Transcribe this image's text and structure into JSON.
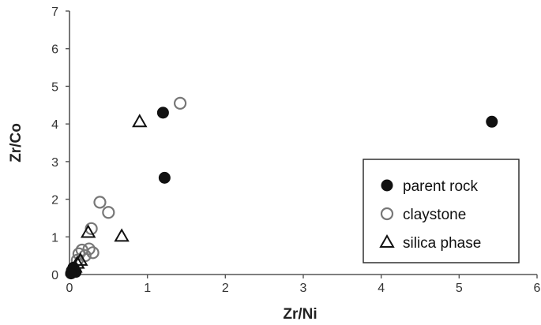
{
  "chart_data": {
    "type": "scatter",
    "xlabel": "Zr/Ni",
    "ylabel": "Zr/Co",
    "xlim": [
      0,
      6
    ],
    "ylim": [
      0,
      7
    ],
    "xticks": [
      "0",
      "1",
      "2",
      "3",
      "4",
      "5",
      "6"
    ],
    "yticks": [
      "0",
      "1",
      "2",
      "3",
      "4",
      "5",
      "6",
      "7"
    ],
    "grid": false,
    "legend_position": "bottom-right",
    "series": [
      {
        "name": "parent rock",
        "marker": "filled-circle",
        "color": "#111111",
        "points": [
          [
            1.2,
            4.3
          ],
          [
            1.22,
            2.57
          ],
          [
            5.42,
            4.06
          ],
          [
            0.03,
            0.1
          ],
          [
            0.05,
            0.18
          ],
          [
            0.08,
            0.07
          ],
          [
            0.02,
            0.03
          ]
        ]
      },
      {
        "name": "claystone",
        "marker": "open-circle",
        "color": "#777777",
        "points": [
          [
            1.42,
            4.55
          ],
          [
            0.39,
            1.92
          ],
          [
            0.5,
            1.65
          ],
          [
            0.28,
            1.22
          ],
          [
            0.12,
            0.55
          ],
          [
            0.16,
            0.65
          ],
          [
            0.2,
            0.5
          ],
          [
            0.25,
            0.68
          ],
          [
            0.3,
            0.58
          ],
          [
            0.1,
            0.38
          ]
        ]
      },
      {
        "name": "silica phase",
        "marker": "open-triangle",
        "color": "#111111",
        "points": [
          [
            0.9,
            4.06
          ],
          [
            0.67,
            1.02
          ],
          [
            0.24,
            1.12
          ],
          [
            0.1,
            0.3
          ],
          [
            0.14,
            0.38
          ],
          [
            0.07,
            0.2
          ],
          [
            0.04,
            0.12
          ]
        ]
      }
    ]
  }
}
